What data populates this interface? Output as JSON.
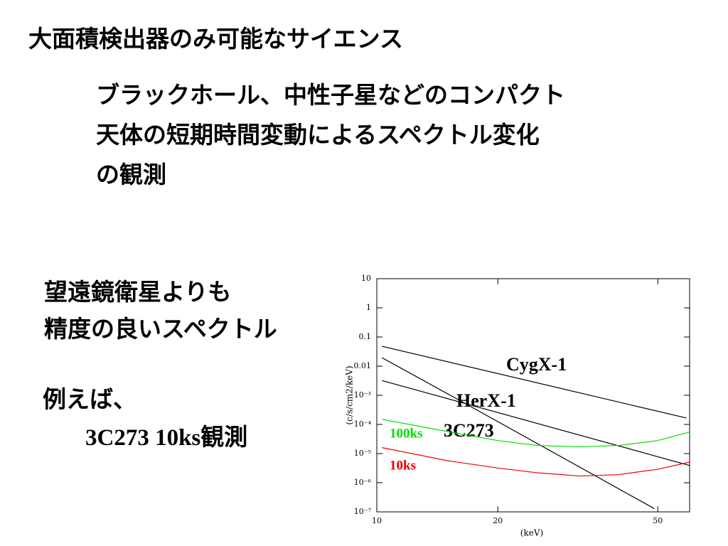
{
  "slide": {
    "title": "大面積検出器のみ可能なサイエンス",
    "point_lines": [
      "ブラックホール、中性子星などのコンパクト",
      "天体の短期時間変動によるスペクトル変化",
      "の観測"
    ],
    "note_lines": [
      "望遠鏡衛星よりも",
      "精度の良いスペクトル"
    ],
    "example_lines": [
      "例えば、",
      "3C273 10ks観測"
    ]
  },
  "chart_data": {
    "type": "line",
    "x_label": "(keV)",
    "y_label": "(c/s/cm2/keV)",
    "x_scale": "log",
    "y_scale": "log",
    "xlim": [
      10,
      60
    ],
    "ylim": [
      1e-07,
      10
    ],
    "xticks": [
      10,
      20,
      50
    ],
    "yticks": [
      10,
      1,
      0.1,
      0.01,
      {
        "value": 0.001,
        "label": "10⁻³"
      },
      {
        "value": 0.0001,
        "label": "10⁻⁴"
      },
      {
        "value": 1e-05,
        "label": "10⁻⁵"
      },
      {
        "value": 1e-06,
        "label": "10⁻⁶"
      },
      {
        "value": 1e-07,
        "label": "10⁻⁷"
      }
    ],
    "series": [
      {
        "name": "CygX-1",
        "color": "#000000",
        "x": [
          10.3,
          58.9
        ],
        "values": [
          0.048,
          0.000166
        ]
      },
      {
        "name": "HerX-1",
        "color": "#000000",
        "x": [
          10.3,
          16.3,
          49
        ],
        "values": [
          0.0195,
          0.0006,
          1.3e-07
        ]
      },
      {
        "name": "3C273",
        "color": "#000000",
        "x": [
          10.3,
          60
        ],
        "values": [
          0.0032,
          3.9e-06
        ]
      },
      {
        "name": "100ks",
        "color": "#00dd00",
        "x": [
          10.3,
          15,
          20,
          25,
          32,
          40,
          50,
          60
        ],
        "values": [
          0.00015,
          5.7e-05,
          2.8e-05,
          1.9e-05,
          1.7e-05,
          1.9e-05,
          2.8e-05,
          5.5e-05
        ]
      },
      {
        "name": "10ks",
        "color": "#ee0000",
        "x": [
          10.3,
          15,
          20,
          25,
          32,
          40,
          50,
          60
        ],
        "values": [
          1.6e-05,
          5.7e-06,
          3.2e-06,
          2.2e-06,
          1.7e-06,
          1.9e-06,
          2.9e-06,
          5.1e-06
        ]
      }
    ]
  }
}
